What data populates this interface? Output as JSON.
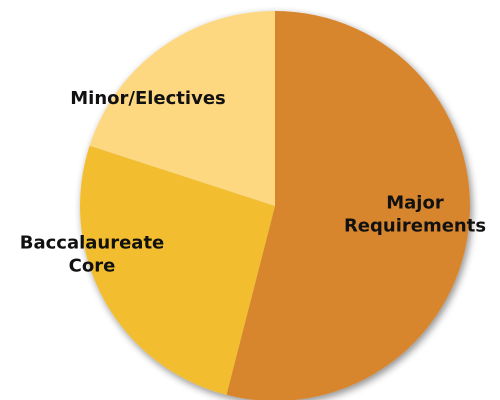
{
  "chart_data": {
    "type": "pie",
    "title": "",
    "start_angle_deg": 0,
    "direction": "clockwise",
    "slices": [
      {
        "label_lines": [
          "Major",
          "Requirements"
        ],
        "value": 54,
        "color": "#D7862F"
      },
      {
        "label_lines": [
          "Baccalaureate",
          "Core"
        ],
        "value": 26,
        "color": "#F2BD2E"
      },
      {
        "label_lines": [
          "Minor/Electives"
        ],
        "value": 20,
        "color": "#FDD881"
      }
    ],
    "legend": "none",
    "shadow": true
  }
}
